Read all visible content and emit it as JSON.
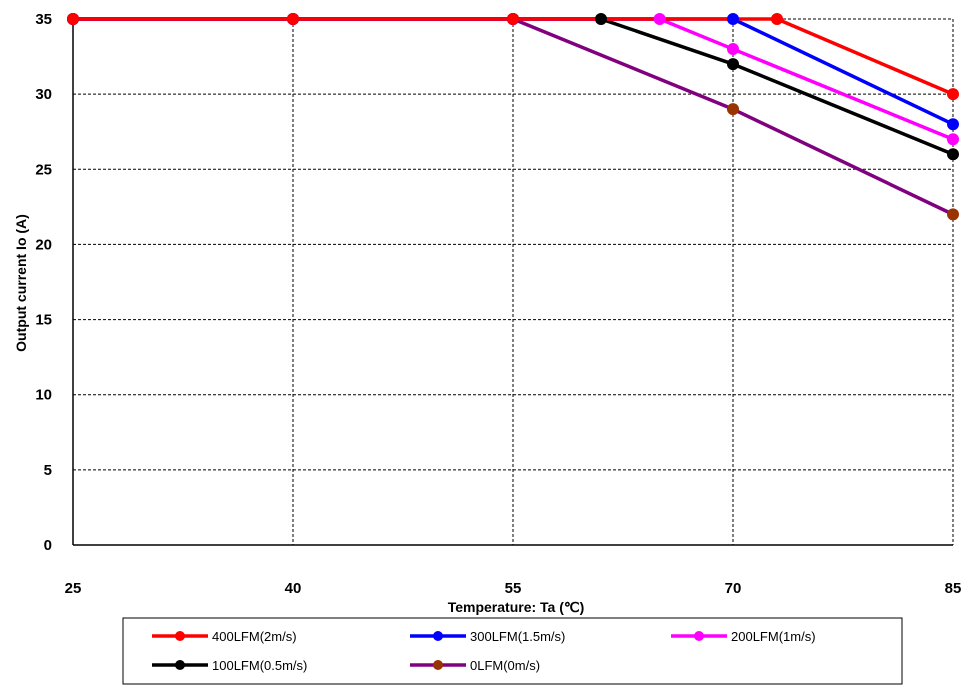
{
  "chart_data": {
    "type": "line",
    "xlabel": "Temperature:  Ta (℃)",
    "ylabel": "Output current   Io (A)",
    "xlim": [
      25,
      85
    ],
    "ylim": [
      0,
      35
    ],
    "x_ticks": [
      "25",
      "40",
      "55",
      "70",
      "85"
    ],
    "y_ticks": [
      "0",
      "5",
      "10",
      "15",
      "20",
      "25",
      "30",
      "35"
    ],
    "grid": "dashed",
    "legend_position": "bottom",
    "series": [
      {
        "name": "400LFM(2m/s)",
        "color": "#ff0000",
        "x": [
          25,
          40,
          55,
          73,
          85
        ],
        "y": [
          35,
          35,
          35,
          35,
          30
        ]
      },
      {
        "name": "300LFM(1.5m/s)",
        "color": "#0000ff",
        "x": [
          25,
          40,
          55,
          70,
          85
        ],
        "y": [
          35,
          35,
          35,
          35,
          28
        ]
      },
      {
        "name": "200LFM(1m/s)",
        "color": "#ff00ff",
        "x": [
          25,
          40,
          55,
          65,
          70,
          85
        ],
        "y": [
          35,
          35,
          35,
          35,
          33,
          27
        ]
      },
      {
        "name": "100LFM(0.5m/s)",
        "color": "#000000",
        "x": [
          25,
          40,
          55,
          61,
          70,
          85
        ],
        "y": [
          35,
          35,
          35,
          35,
          32,
          26
        ]
      },
      {
        "name": "0LFM(0m/s)",
        "color": "#800080",
        "marker_color": "#993300",
        "x": [
          25,
          40,
          55,
          70,
          85
        ],
        "y": [
          35,
          35,
          35,
          29,
          22
        ]
      }
    ]
  }
}
